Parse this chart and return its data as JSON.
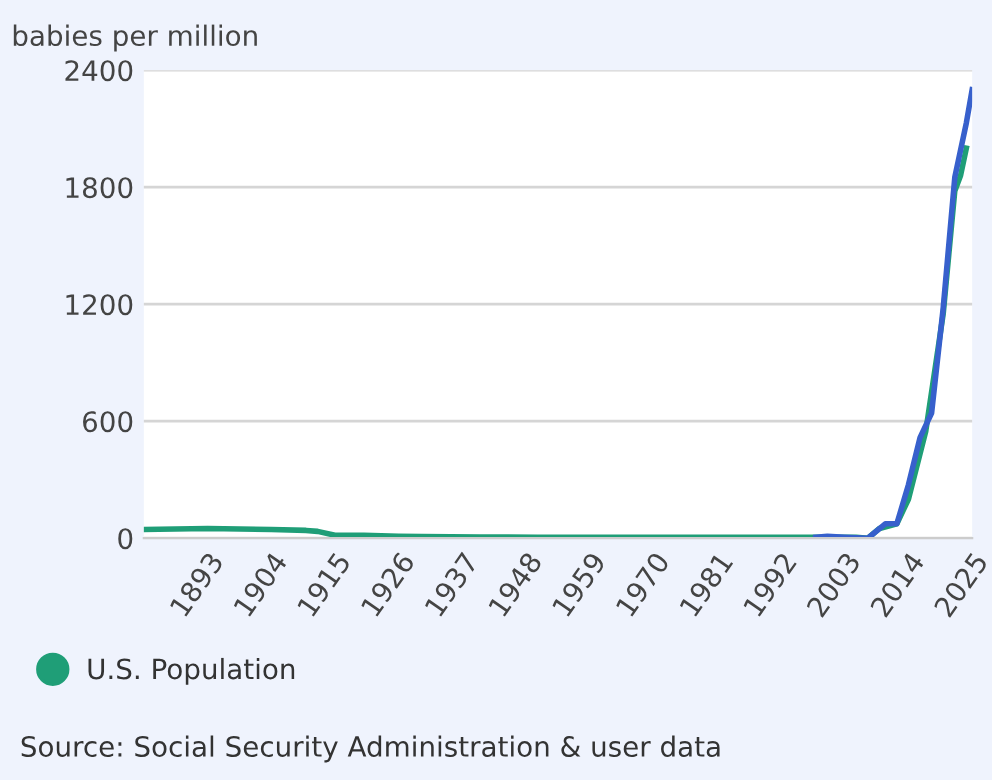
{
  "chart_data": {
    "type": "line",
    "ylabel": "babies per million",
    "annotations": [
      "Source: Social Security Administration & user data"
    ],
    "xlim": [
      1882,
      2025
    ],
    "xticks": [
      1893,
      1904,
      1915,
      1926,
      1937,
      1948,
      1959,
      1970,
      1981,
      1992,
      2003,
      2014,
      2025
    ],
    "ylim": [
      0,
      2400
    ],
    "yticks": [
      0,
      600,
      1200,
      1800,
      2400
    ],
    "grid": "y",
    "legend": "bottom",
    "marker": "none",
    "line_style": "solid",
    "series": [
      {
        "name": "U.S. Population",
        "color": "#1f9e77",
        "x": [
          1882,
          1893,
          1904,
          1910,
          1912,
          1915,
          1920,
          1926,
          1930,
          1940,
          1950,
          1960,
          1970,
          1980,
          1990,
          2000,
          2005,
          2007,
          2009,
          2012,
          2014,
          2017,
          2020,
          2022,
          2023,
          2024
        ],
        "values": [
          45,
          50,
          45,
          40,
          35,
          15,
          15,
          10,
          8,
          6,
          5,
          5,
          5,
          5,
          5,
          5,
          5,
          0,
          50,
          74,
          200,
          550,
          1150,
          1780,
          1860,
          2000
        ]
      },
      {
        "name": null,
        "color": "#3760cc",
        "x": [
          1998,
          2000,
          2003,
          2007,
          2010,
          2012,
          2014,
          2016,
          2018,
          2020,
          2022,
          2024,
          2025
        ],
        "values": [
          5,
          10,
          5,
          0,
          74,
          74,
          274,
          516,
          642,
          1180,
          1850,
          2130,
          2300
        ]
      }
    ]
  }
}
